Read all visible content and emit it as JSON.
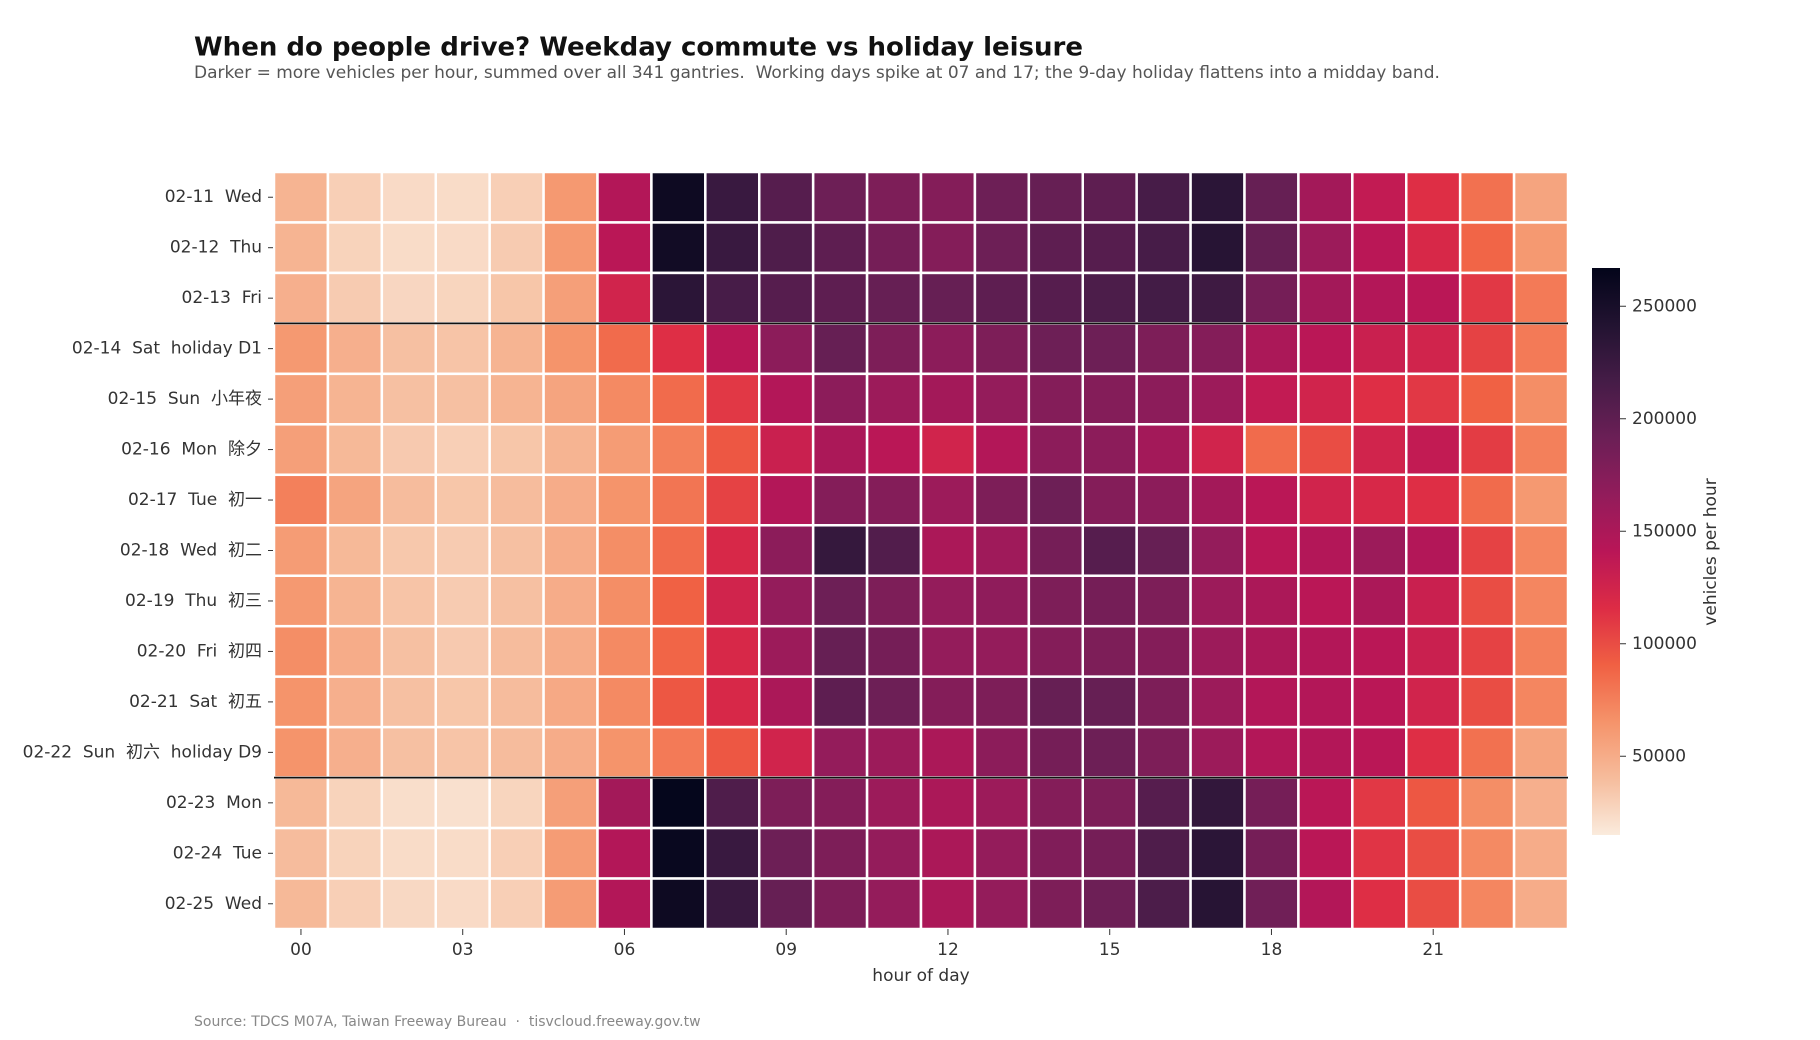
{
  "chart_data": {
    "type": "heatmap",
    "title": "When do people drive? Weekday commute vs holiday leisure",
    "subtitle": "Darker = more vehicles per hour, summed over all 341 gantries.  Working days spike at 07 and 17; the 9-day holiday flattens into a midday band.",
    "source": "Source: TDCS M07A, Taiwan Freeway Bureau  ·  tisvcloud.freeway.gov.tw",
    "xlabel": "hour of day",
    "colorbar_label": "vehicles per hour",
    "x": [
      "00",
      null,
      null,
      "03",
      null,
      null,
      "06",
      null,
      null,
      "09",
      null,
      null,
      "12",
      null,
      null,
      "15",
      null,
      null,
      "18",
      null,
      null,
      "21",
      null,
      null
    ],
    "categories": [
      "02-11  Wed",
      "02-12  Thu",
      "02-13  Fri",
      "02-14  Sat  holiday D1",
      "02-15  Sun  小年夜",
      "02-16  Mon  除夕",
      "02-17  Tue  初一",
      "02-18  Wed  初二",
      "02-19  Thu  初三",
      "02-20  Fri  初四",
      "02-21  Sat  初五",
      "02-22  Sun  初六  holiday D9",
      "02-23  Mon",
      "02-24  Tue",
      "02-25  Wed"
    ],
    "values": [
      [
        45000,
        30000,
        24000,
        23000,
        30000,
        62000,
        145000,
        258000,
        225000,
        205000,
        190000,
        180000,
        175000,
        190000,
        195000,
        200000,
        215000,
        235000,
        195000,
        155000,
        135000,
        115000,
        82000,
        55000
      ],
      [
        45000,
        28000,
        23000,
        24000,
        32000,
        62000,
        140000,
        255000,
        225000,
        210000,
        200000,
        185000,
        175000,
        190000,
        200000,
        205000,
        215000,
        238000,
        195000,
        160000,
        140000,
        120000,
        88000,
        62000
      ],
      [
        48000,
        32000,
        26000,
        27000,
        35000,
        58000,
        125000,
        235000,
        215000,
        205000,
        200000,
        195000,
        195000,
        200000,
        205000,
        212000,
        218000,
        222000,
        185000,
        155000,
        145000,
        140000,
        110000,
        78000
      ],
      [
        62000,
        48000,
        38000,
        36000,
        45000,
        65000,
        85000,
        115000,
        140000,
        170000,
        195000,
        180000,
        170000,
        180000,
        190000,
        190000,
        180000,
        175000,
        150000,
        140000,
        130000,
        125000,
        105000,
        78000
      ],
      [
        58000,
        45000,
        38000,
        38000,
        45000,
        55000,
        70000,
        85000,
        110000,
        145000,
        170000,
        160000,
        155000,
        165000,
        175000,
        175000,
        170000,
        160000,
        135000,
        125000,
        115000,
        110000,
        90000,
        68000
      ],
      [
        58000,
        42000,
        33000,
        30000,
        35000,
        45000,
        60000,
        75000,
        95000,
        130000,
        150000,
        140000,
        125000,
        145000,
        170000,
        170000,
        155000,
        125000,
        85000,
        100000,
        125000,
        135000,
        108000,
        75000
      ],
      [
        75000,
        55000,
        40000,
        35000,
        40000,
        50000,
        65000,
        80000,
        105000,
        145000,
        175000,
        175000,
        160000,
        180000,
        190000,
        175000,
        170000,
        155000,
        140000,
        125000,
        120000,
        115000,
        85000,
        62000
      ],
      [
        60000,
        42000,
        34000,
        32000,
        38000,
        50000,
        68000,
        85000,
        120000,
        170000,
        228000,
        208000,
        150000,
        158000,
        185000,
        205000,
        195000,
        165000,
        140000,
        145000,
        160000,
        145000,
        105000,
        72000
      ],
      [
        62000,
        45000,
        36000,
        32000,
        38000,
        50000,
        68000,
        90000,
        125000,
        165000,
        190000,
        180000,
        165000,
        168000,
        180000,
        185000,
        180000,
        160000,
        150000,
        140000,
        150000,
        130000,
        100000,
        72000
      ],
      [
        68000,
        50000,
        38000,
        33000,
        40000,
        50000,
        70000,
        88000,
        120000,
        160000,
        195000,
        185000,
        165000,
        165000,
        175000,
        180000,
        175000,
        160000,
        150000,
        145000,
        140000,
        130000,
        105000,
        75000
      ],
      [
        65000,
        48000,
        38000,
        35000,
        40000,
        52000,
        70000,
        95000,
        120000,
        150000,
        200000,
        190000,
        175000,
        180000,
        195000,
        195000,
        180000,
        160000,
        145000,
        145000,
        140000,
        125000,
        100000,
        72000
      ],
      [
        65000,
        48000,
        38000,
        36000,
        40000,
        50000,
        65000,
        78000,
        95000,
        125000,
        165000,
        160000,
        150000,
        170000,
        185000,
        190000,
        180000,
        160000,
        145000,
        145000,
        140000,
        115000,
        82000,
        55000
      ],
      [
        42000,
        28000,
        22000,
        21000,
        27000,
        58000,
        155000,
        265000,
        210000,
        180000,
        175000,
        160000,
        150000,
        160000,
        175000,
        180000,
        205000,
        230000,
        185000,
        140000,
        110000,
        95000,
        68000,
        48000
      ],
      [
        40000,
        28000,
        23000,
        23000,
        30000,
        60000,
        145000,
        262000,
        225000,
        190000,
        180000,
        165000,
        150000,
        165000,
        178000,
        185000,
        210000,
        235000,
        185000,
        140000,
        112000,
        100000,
        70000,
        50000
      ],
      [
        42000,
        30000,
        25000,
        24000,
        30000,
        60000,
        145000,
        258000,
        225000,
        195000,
        180000,
        165000,
        150000,
        165000,
        180000,
        190000,
        212000,
        238000,
        188000,
        145000,
        115000,
        100000,
        72000,
        50000
      ]
    ],
    "zlim": [
      15000,
      267000
    ],
    "zticks": [
      50000,
      100000,
      150000,
      200000,
      250000
    ],
    "colormap": [
      "#faebdd",
      "#f6bc9c",
      "#f5936a",
      "#f06043",
      "#dd2c45",
      "#b91657",
      "#921c5b",
      "#6b1f56",
      "#451c47",
      "#221331",
      "#03051a"
    ]
  }
}
